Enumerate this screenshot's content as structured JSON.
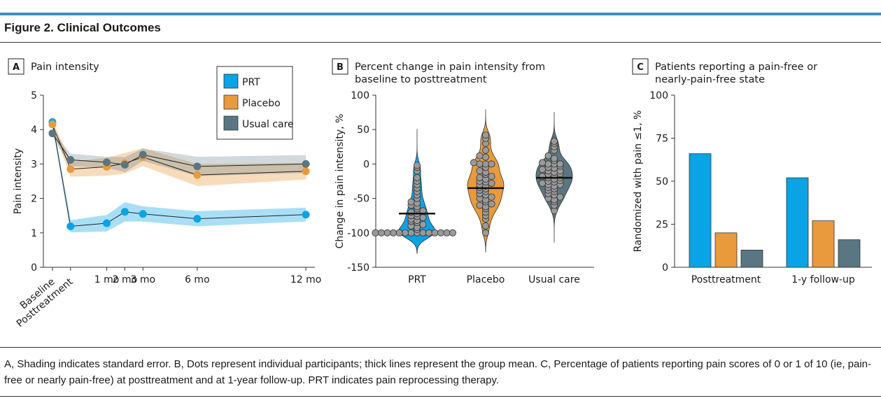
{
  "figure": {
    "title": "Figure 2. Clinical Outcomes",
    "caption": "A, Shading indicates standard error. B, Dots represent individual participants; thick lines represent the group mean. C, Percentage of patients reporting pain scores of 0 or 1 of 10 (ie, pain-free or nearly pain-free) at posttreatment and at 1-year follow-up. PRT indicates pain reprocessing therapy."
  },
  "colors": {
    "PRT": "#0aa3e6",
    "Placebo": "#e89a3c",
    "Usual care": "#5a7682",
    "accent": "#3a8fc4"
  },
  "chart_data": [
    {
      "panel": "A",
      "type": "line",
      "title": "Pain intensity",
      "ylabel": "Pain intensity",
      "xlabel": "",
      "ylim": [
        0,
        5
      ],
      "yticks": [
        0,
        1,
        2,
        3,
        4,
        5
      ],
      "x_tick_labels": [
        "Baseline",
        "Posttreatment",
        "1 mo",
        "2 mo",
        "3 mo",
        "6 mo",
        "12 mo"
      ],
      "x_months": [
        -2,
        -1,
        1,
        2,
        3,
        6,
        12
      ],
      "legend_position": "top-right",
      "series": [
        {
          "name": "PRT",
          "values": [
            4.22,
            1.19,
            1.28,
            1.61,
            1.55,
            1.41,
            1.53
          ],
          "se": [
            0.1,
            0.18,
            0.24,
            0.28,
            0.22,
            0.22,
            0.2
          ]
        },
        {
          "name": "Placebo",
          "values": [
            4.15,
            2.85,
            2.92,
            3.02,
            3.2,
            2.68,
            2.79
          ],
          "se": [
            0.12,
            0.22,
            0.26,
            0.3,
            0.26,
            0.32,
            0.24
          ]
        },
        {
          "name": "Usual care",
          "values": [
            3.89,
            3.12,
            3.05,
            2.98,
            3.27,
            2.93,
            3.0
          ],
          "se": [
            0.1,
            0.18,
            0.16,
            0.22,
            0.18,
            0.28,
            0.26
          ]
        }
      ]
    },
    {
      "panel": "B",
      "type": "violin",
      "title": "Percent change in pain intensity from baseline to posttreatment",
      "ylabel": "Change in pain intensity, %",
      "ylim": [
        -150,
        100
      ],
      "yticks": [
        -150,
        -100,
        -50,
        0,
        50,
        100
      ],
      "categories": [
        "PRT",
        "Placebo",
        "Usual care"
      ],
      "means": [
        -72,
        -35,
        -20
      ],
      "ranges": [
        [
          -130,
          51
        ],
        [
          -128,
          79
        ],
        [
          -114,
          75
        ]
      ],
      "points": [
        [
          -100,
          -100,
          -100,
          -100,
          -100,
          -100,
          -100,
          -100,
          -100,
          -100,
          -100,
          -100,
          -100,
          -100,
          -95,
          -92,
          -90,
          -88,
          -85,
          -83,
          -82,
          -80,
          -78,
          -76,
          -75,
          -72,
          -70,
          -68,
          -65,
          -62,
          -60,
          -57,
          -55,
          -50,
          -45,
          -40,
          -35,
          -30,
          -25,
          -20,
          -10,
          -5,
          -2
        ],
        [
          -100,
          -90,
          -80,
          -75,
          -70,
          -65,
          -62,
          -60,
          -58,
          -55,
          -52,
          -50,
          -48,
          -45,
          -43,
          -40,
          -38,
          -36,
          -34,
          -32,
          -30,
          -28,
          -26,
          -25,
          -22,
          -20,
          -18,
          -15,
          -12,
          -10,
          -5,
          0,
          0,
          0,
          2,
          10,
          12,
          20,
          30,
          37,
          42
        ],
        [
          -68,
          -60,
          -55,
          -52,
          -50,
          -48,
          -45,
          -43,
          -40,
          -38,
          -36,
          -34,
          -32,
          -30,
          -30,
          -28,
          -26,
          -25,
          -24,
          -22,
          -20,
          -20,
          -18,
          -16,
          -15,
          -14,
          -12,
          -10,
          -10,
          -8,
          -6,
          -5,
          -3,
          0,
          0,
          0,
          2,
          5,
          8,
          12,
          20,
          25,
          30,
          33
        ]
      ]
    },
    {
      "panel": "C",
      "type": "bar",
      "title": "Patients reporting a pain-free or nearly-pain-free state",
      "ylabel": "Randomized with pain ≤1, %",
      "ylim": [
        0,
        100
      ],
      "yticks": [
        0,
        25,
        50,
        75,
        100
      ],
      "categories": [
        "Posttreatment",
        "1-y follow-up"
      ],
      "series": [
        {
          "name": "PRT",
          "values": [
            66,
            52
          ]
        },
        {
          "name": "Placebo",
          "values": [
            20,
            27
          ]
        },
        {
          "name": "Usual care",
          "values": [
            10,
            16
          ]
        }
      ]
    }
  ]
}
